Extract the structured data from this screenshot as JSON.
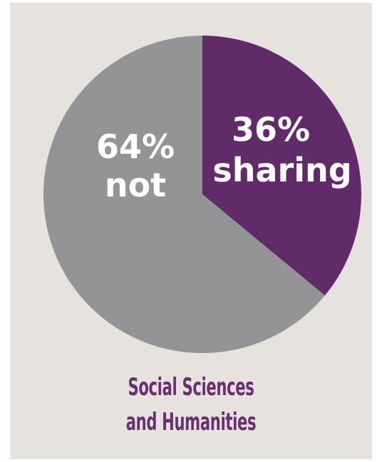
{
  "chart_data": {
    "type": "pie",
    "title": "",
    "slices": [
      {
        "label": "sharing",
        "value": 36,
        "percent_text": "36%",
        "name_text": "sharing",
        "color": "#612a69"
      },
      {
        "label": "not",
        "value": 64,
        "percent_text": "64%",
        "name_text": "not",
        "color": "#949496"
      }
    ]
  },
  "caption": {
    "line1": "Social Sciences",
    "line2": "and Humanities"
  },
  "colors": {
    "background": "#e6e2dd",
    "caption": "#6a2f72"
  }
}
